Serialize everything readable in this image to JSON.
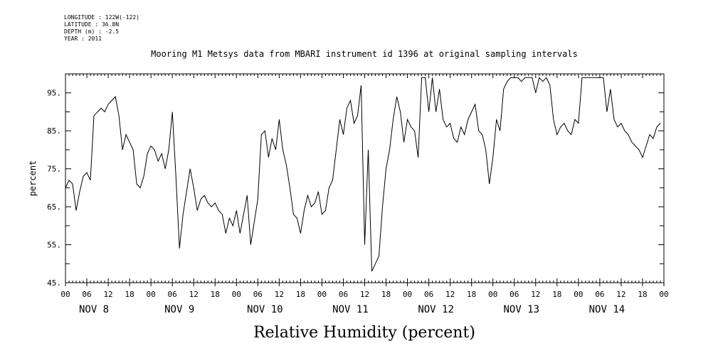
{
  "header": {
    "longitude": "LONGITUDE : 122W(-122)",
    "latitude": "LATITUDE : 36.8N",
    "depth": "DEPTH (m) : -2.5",
    "year": "YEAR : 2011"
  },
  "chart_data": {
    "type": "line",
    "title": "Mooring M1 Metsys data from MBARI instrument id 1396 at original sampling intervals",
    "xlabel": "Relative Humidity (percent)",
    "ylabel": "percent",
    "ylim": [
      45,
      100
    ],
    "yticks": [
      "45.",
      "55.",
      "65.",
      "75.",
      "85.",
      "95."
    ],
    "ytick_values": [
      45,
      55,
      65,
      75,
      85,
      95
    ],
    "x_unit": "hours since Nov 8 00:00",
    "xlim": [
      0,
      168
    ],
    "hour_ticks": [
      "00",
      "06",
      "12",
      "18"
    ],
    "day_labels": [
      "NOV  8",
      "NOV  9",
      "NOV 10",
      "NOV 11",
      "NOV 12",
      "NOV 13",
      "NOV 14"
    ],
    "grid": false,
    "series": [
      {
        "x": [
          0,
          1,
          2,
          3,
          4,
          5,
          6,
          7,
          8,
          9,
          10,
          11,
          12,
          13,
          14,
          15,
          16,
          17,
          18,
          19,
          20,
          21,
          22,
          23,
          24,
          25,
          26,
          27,
          28,
          29,
          30,
          31,
          32,
          33,
          34,
          35,
          36,
          37,
          38,
          39,
          40,
          41,
          42,
          43,
          44,
          45,
          46,
          47,
          48,
          49,
          50,
          51,
          52,
          53,
          54,
          55,
          56,
          57,
          58,
          59,
          60,
          61,
          62,
          63,
          64,
          65,
          66,
          67,
          68,
          69,
          70,
          71,
          72,
          73,
          74,
          75,
          76,
          77,
          78,
          79,
          80,
          81,
          82,
          83,
          84,
          85,
          86,
          87,
          88,
          89,
          90,
          91,
          92,
          93,
          94,
          95,
          96,
          97,
          98,
          99,
          100,
          101,
          102,
          103,
          104,
          105,
          106,
          107,
          108,
          109,
          110,
          111,
          112,
          113,
          114,
          115,
          116,
          117,
          118,
          119,
          120,
          121,
          122,
          123,
          124,
          125,
          126,
          127,
          128,
          129,
          130,
          131,
          132,
          133,
          134,
          135,
          136,
          137,
          138,
          139,
          140,
          141,
          142,
          143,
          144,
          145,
          146,
          147,
          148,
          149,
          150,
          151,
          152,
          153,
          154,
          155,
          156,
          157,
          158,
          159,
          160,
          161,
          162,
          163,
          164,
          165,
          166,
          167
        ],
        "y": [
          70,
          72,
          71,
          64,
          69,
          73,
          74,
          72,
          89,
          90,
          91,
          90,
          92,
          93,
          94,
          89,
          80,
          84,
          82,
          80,
          71,
          70,
          73,
          79,
          81,
          80,
          77,
          79,
          75,
          80,
          90,
          73,
          54,
          63,
          69,
          75,
          70,
          64,
          67,
          68,
          66,
          65,
          66,
          64,
          63,
          58,
          62,
          60,
          64,
          58,
          63,
          68,
          55,
          61,
          67,
          84,
          85,
          78,
          83,
          80,
          88,
          80,
          76,
          70,
          63,
          62,
          58,
          64,
          68,
          65,
          66,
          69,
          63,
          64,
          70,
          72,
          80,
          88,
          84,
          91,
          93,
          87,
          89,
          97,
          55,
          80,
          48,
          50,
          52,
          65,
          75,
          80,
          88,
          94,
          90,
          82,
          88,
          86,
          85,
          78,
          99,
          99,
          90,
          99,
          90,
          96,
          88,
          86,
          87,
          83,
          82,
          86,
          84,
          88,
          90,
          92,
          85,
          84,
          80,
          71,
          78,
          88,
          85,
          96,
          98,
          99,
          99,
          99,
          98,
          99,
          99,
          99,
          95,
          99,
          98,
          99,
          97,
          88,
          84,
          86,
          87,
          85,
          84,
          88,
          87,
          99,
          99,
          99,
          99,
          99,
          99,
          99,
          90,
          96,
          88,
          86,
          87,
          85,
          84,
          82,
          81,
          80,
          78,
          81,
          84,
          83,
          86,
          87
        ]
      }
    ]
  }
}
